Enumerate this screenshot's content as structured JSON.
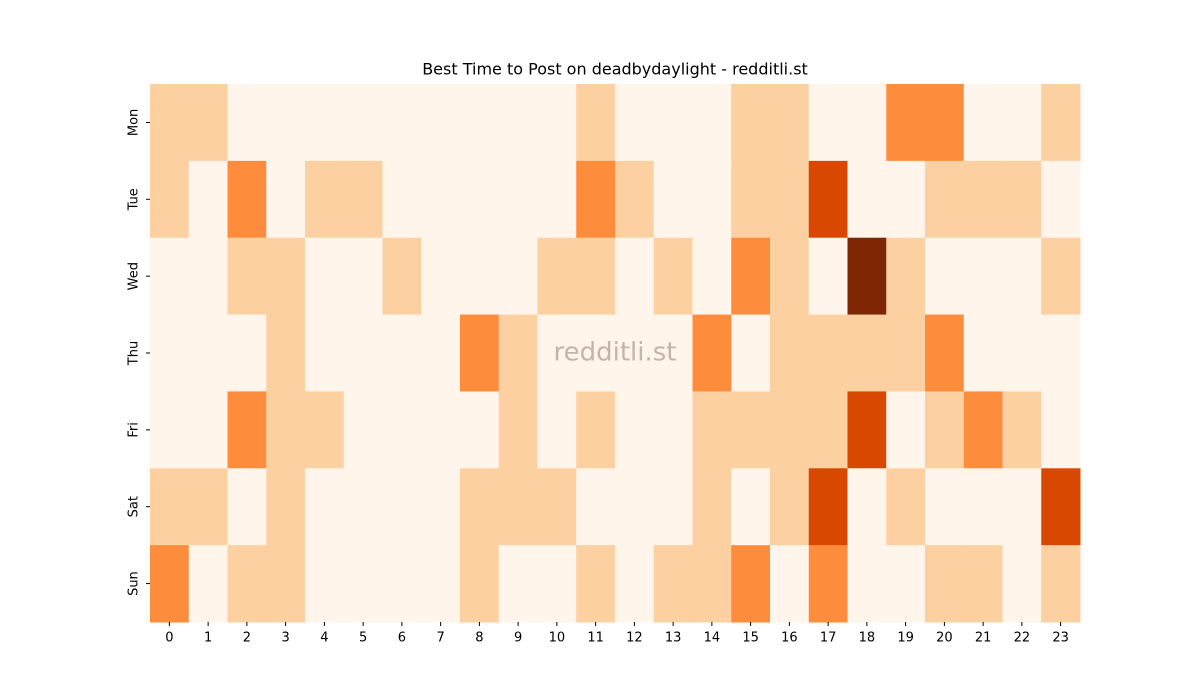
{
  "chart_data": {
    "type": "heatmap",
    "title": "Best Time to Post on deadbydaylight - redditli.st",
    "watermark": "redditli.st",
    "x": [
      "0",
      "1",
      "2",
      "3",
      "4",
      "5",
      "6",
      "7",
      "8",
      "9",
      "10",
      "11",
      "12",
      "13",
      "14",
      "15",
      "16",
      "17",
      "18",
      "19",
      "20",
      "21",
      "22",
      "23"
    ],
    "y": [
      "Mon",
      "Tue",
      "Wed",
      "Thu",
      "Fri",
      "Sat",
      "Sun"
    ],
    "values": [
      [
        1,
        1,
        0,
        0,
        0,
        0,
        0,
        0,
        0,
        0,
        0,
        1,
        0,
        0,
        0,
        1,
        1,
        0,
        0,
        2,
        2,
        0,
        0,
        1
      ],
      [
        1,
        0,
        2,
        0,
        1,
        1,
        0,
        0,
        0,
        0,
        0,
        2,
        1,
        0,
        0,
        1,
        1,
        3,
        0,
        0,
        1,
        1,
        1,
        0
      ],
      [
        0,
        0,
        1,
        1,
        0,
        0,
        1,
        0,
        0,
        0,
        1,
        1,
        0,
        1,
        0,
        2,
        1,
        0,
        4,
        1,
        0,
        0,
        0,
        1
      ],
      [
        0,
        0,
        0,
        1,
        0,
        0,
        0,
        0,
        2,
        1,
        0,
        0,
        0,
        0,
        2,
        0,
        1,
        1,
        1,
        1,
        2,
        0,
        0,
        0
      ],
      [
        0,
        0,
        2,
        1,
        1,
        0,
        0,
        0,
        0,
        1,
        0,
        1,
        0,
        0,
        1,
        1,
        1,
        1,
        3,
        0,
        1,
        2,
        1,
        0
      ],
      [
        1,
        1,
        0,
        1,
        0,
        0,
        0,
        0,
        1,
        1,
        1,
        0,
        0,
        0,
        1,
        0,
        1,
        3,
        0,
        1,
        0,
        0,
        0,
        3
      ],
      [
        2,
        0,
        1,
        1,
        0,
        0,
        0,
        0,
        1,
        0,
        0,
        1,
        0,
        1,
        1,
        2,
        0,
        2,
        0,
        0,
        1,
        1,
        0,
        1
      ]
    ],
    "colors": [
      "#fff5eb",
      "#fdd0a2",
      "#fd8d3c",
      "#d94801",
      "#7f2704"
    ]
  }
}
